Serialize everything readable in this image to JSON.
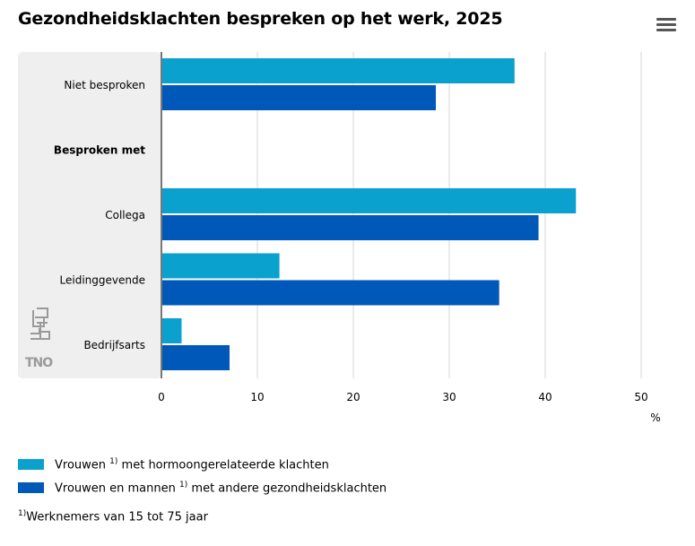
{
  "title": "Gezondheidsklachten bespreken op het werk, 2025",
  "menu_icon": "hamburger-menu-icon",
  "logos": [
    "cbs",
    "TNO"
  ],
  "colors": {
    "series1": "#0aa1cf",
    "series2": "#0058b8",
    "panel": "#efefef",
    "grid": "#d6d6d6",
    "axis": "#777777"
  },
  "chart_data": {
    "type": "bar",
    "orientation": "horizontal",
    "categories": [
      "Niet besproken",
      "Besproken met",
      "Collega",
      "Leidinggevende",
      "Bedrijfsarts"
    ],
    "category_bold": [
      false,
      true,
      false,
      false,
      false
    ],
    "series": [
      {
        "name_main": "Vrouwen",
        "name_sup": "1)",
        "name_rest": "met hormoongerelateerde klachten",
        "values": [
          36.8,
          null,
          43.2,
          12.3,
          2.1
        ]
      },
      {
        "name_main": "Vrouwen en mannen",
        "name_sup": "1)",
        "name_rest": "met andere gezondheidsklachten",
        "values": [
          28.6,
          null,
          39.3,
          35.2,
          7.1
        ]
      }
    ],
    "xlim": [
      0,
      50
    ],
    "xticks": [
      0,
      10,
      20,
      30,
      40,
      50
    ],
    "xunit": "%",
    "grid": true,
    "legend_position": "bottom-left"
  },
  "footnote": {
    "sup": "1)",
    "text": "Werknemers van 15 tot 75 jaar"
  }
}
